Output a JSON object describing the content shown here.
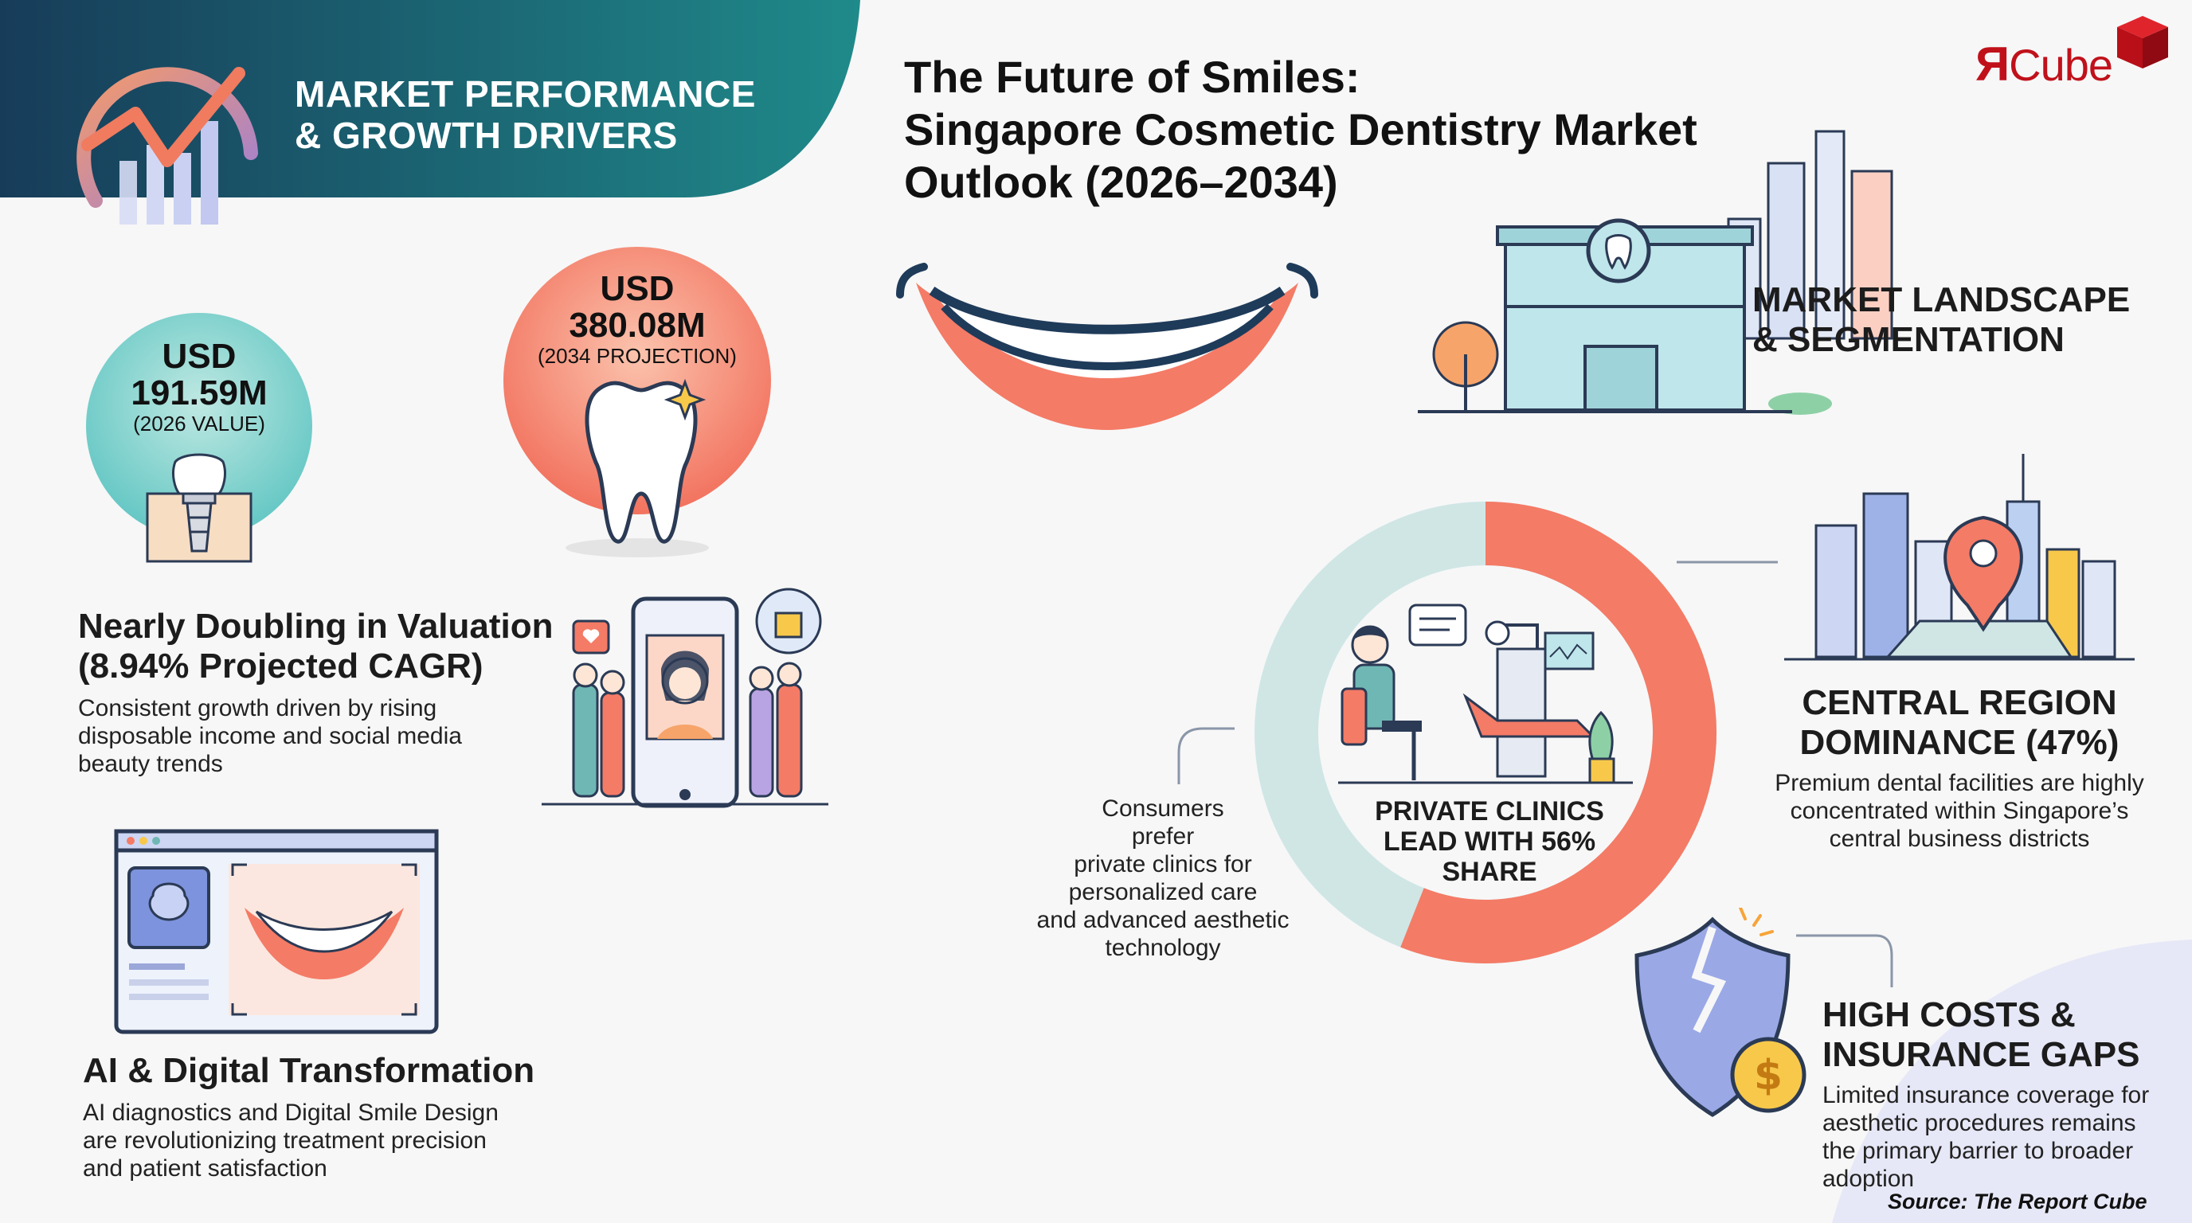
{
  "header": {
    "title_line1": "MARKET PERFORMANCE",
    "title_line2": "& GROWTH DRIVERS"
  },
  "main_title": {
    "line1": "The Future of Smiles:",
    "line2": "Singapore Cosmetic Dentistry Market",
    "line3": "Outlook (2026–2034)"
  },
  "logo": {
    "r": "Я",
    "cube": "Cube"
  },
  "bubble_2026": {
    "currency": "USD",
    "value": "191.59M",
    "note": "(2026 VALUE)"
  },
  "bubble_2034": {
    "currency": "USD",
    "value": "380.08M",
    "note": "(2034 PROJECTION)"
  },
  "doubling": {
    "heading_line1": "Nearly Doubling in Valuation",
    "heading_line2": "(8.94% Projected CAGR)",
    "desc": "Consistent growth driven by rising disposable income and social media beauty trends"
  },
  "ai": {
    "heading": "AI & Digital Transformation",
    "desc": "AI diagnostics and Digital Smile Design are revolutionizing treatment precision and patient satisfaction"
  },
  "landscape": {
    "heading_line1": "MARKET LANDSCAPE",
    "heading_line2": "& SEGMENTATION"
  },
  "central": {
    "heading_line1": "CENTRAL REGION",
    "heading_line2": "DOMINANCE (47%)",
    "desc": "Premium dental facilities are highly concentrated within Singapore’s central business districts"
  },
  "private_clinics": {
    "label_line1": "PRIVATE CLINICS",
    "label_line2": "LEAD WITH 56%",
    "label_line3": "SHARE",
    "share": 56
  },
  "consumers": {
    "line1": "Consumers",
    "line2": "prefer",
    "line3": "private clinics for",
    "line4": "personalized care",
    "line5": "and advanced aesthetic",
    "line6": "technology"
  },
  "costs": {
    "heading_line1": "HIGH COSTS &",
    "heading_line2": "INSURANCE GAPS",
    "desc": "Limited insurance coverage for aesthetic procedures remains the primary barrier to broader adoption"
  },
  "source": "Source: The Report Cube",
  "colors": {
    "header_teal": "#1f7f86",
    "header_navy": "#173c59",
    "coral": "#f47b66",
    "donut_light": "#cfe6e5",
    "logo_red": "#c0111b"
  },
  "icons": [
    "growth-chart-icon",
    "smile-lips-icon",
    "dental-clinic-icon",
    "dental-implant-icon",
    "tooth-icon",
    "social-media-phone-icon",
    "digital-smile-screen-icon",
    "dentist-chair-icon",
    "city-location-icon",
    "broken-shield-dollar-icon",
    "logo-cube-icon"
  ]
}
